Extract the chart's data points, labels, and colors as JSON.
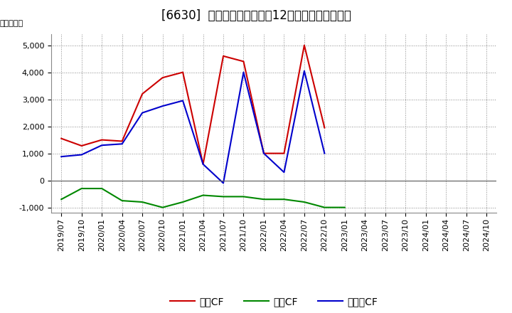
{
  "title": "[6630]  キャッシュフローの12か月移動合計の推移",
  "ylabel": "（百万円）",
  "x_labels": [
    "2019/07",
    "2019/10",
    "2020/01",
    "2020/04",
    "2020/07",
    "2020/10",
    "2021/01",
    "2021/04",
    "2021/07",
    "2021/10",
    "2022/01",
    "2022/04",
    "2022/07",
    "2022/10",
    "2023/01",
    "2023/04",
    "2023/07",
    "2023/10",
    "2024/01",
    "2024/04",
    "2024/07",
    "2024/10"
  ],
  "series": [
    {
      "label": "営業CF",
      "color": "#cc0000",
      "data": [
        1550,
        1280,
        1500,
        1450,
        3200,
        3800,
        4000,
        600,
        4600,
        4400,
        1000,
        1000,
        5000,
        1950,
        null,
        null,
        null,
        null,
        null,
        null,
        null,
        null
      ]
    },
    {
      "label": "投資CF",
      "color": "#008800",
      "data": [
        -700,
        -300,
        -300,
        -750,
        -800,
        -1000,
        -800,
        -550,
        -600,
        -600,
        -700,
        -700,
        -800,
        -1000,
        -1000,
        null,
        null,
        null,
        null,
        null,
        null,
        null
      ]
    },
    {
      "label": "フリーCF",
      "color": "#0000cc",
      "data": [
        880,
        950,
        1300,
        1350,
        2500,
        2750,
        2950,
        600,
        -100,
        4000,
        1000,
        300,
        4050,
        1000,
        null,
        null,
        null,
        null,
        null,
        null,
        null,
        null
      ]
    }
  ],
  "ylim": [
    -1200,
    5400
  ],
  "yticks": [
    -1000,
    0,
    1000,
    2000,
    3000,
    4000,
    5000
  ],
  "background_color": "#ffffff",
  "grid_color": "#aaaaaa",
  "title_fontsize": 12,
  "axis_fontsize": 8,
  "legend_fontsize": 10
}
